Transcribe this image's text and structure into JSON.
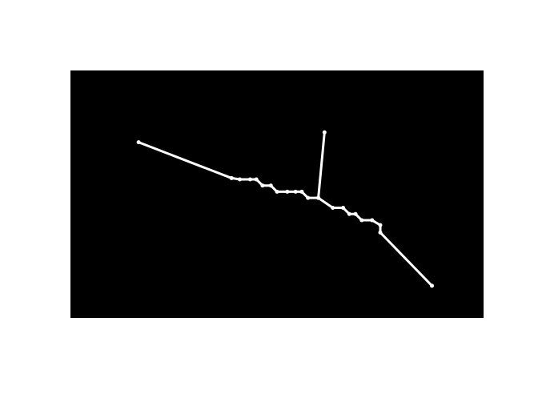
{
  "chart_data": {
    "type": "line",
    "title": "",
    "xlabel": "",
    "ylabel": "",
    "grid": false,
    "colors": {
      "page_background": "#ffffff",
      "plot_background": "#000000",
      "line": "#ffffff"
    },
    "xlim": [
      0,
      100
    ],
    "ylim": [
      0,
      100
    ],
    "series": [
      {
        "values": [
          {
            "x": 16.5,
            "y": 71.0
          },
          {
            "x": 39.0,
            "y": 56.5
          },
          {
            "x": 41.0,
            "y": 56.0
          },
          {
            "x": 43.5,
            "y": 56.0
          },
          {
            "x": 45.0,
            "y": 56.0
          },
          {
            "x": 46.5,
            "y": 53.5
          },
          {
            "x": 48.5,
            "y": 53.5
          },
          {
            "x": 50.0,
            "y": 51.0
          },
          {
            "x": 52.5,
            "y": 51.0
          },
          {
            "x": 54.5,
            "y": 51.0
          },
          {
            "x": 56.0,
            "y": 51.0
          },
          {
            "x": 57.5,
            "y": 48.5
          },
          {
            "x": 60.0,
            "y": 48.5
          },
          {
            "x": 60.0,
            "y": 48.5
          },
          {
            "x": 61.5,
            "y": 75.0
          },
          {
            "x": 60.0,
            "y": 48.5
          },
          {
            "x": 63.5,
            "y": 44.5
          },
          {
            "x": 66.0,
            "y": 44.5
          },
          {
            "x": 67.5,
            "y": 42.0
          },
          {
            "x": 69.0,
            "y": 42.0
          },
          {
            "x": 70.5,
            "y": 39.5
          },
          {
            "x": 73.0,
            "y": 39.5
          },
          {
            "x": 75.0,
            "y": 37.5
          },
          {
            "x": 75.0,
            "y": 34.5
          },
          {
            "x": 87.5,
            "y": 13.0
          }
        ]
      }
    ]
  }
}
